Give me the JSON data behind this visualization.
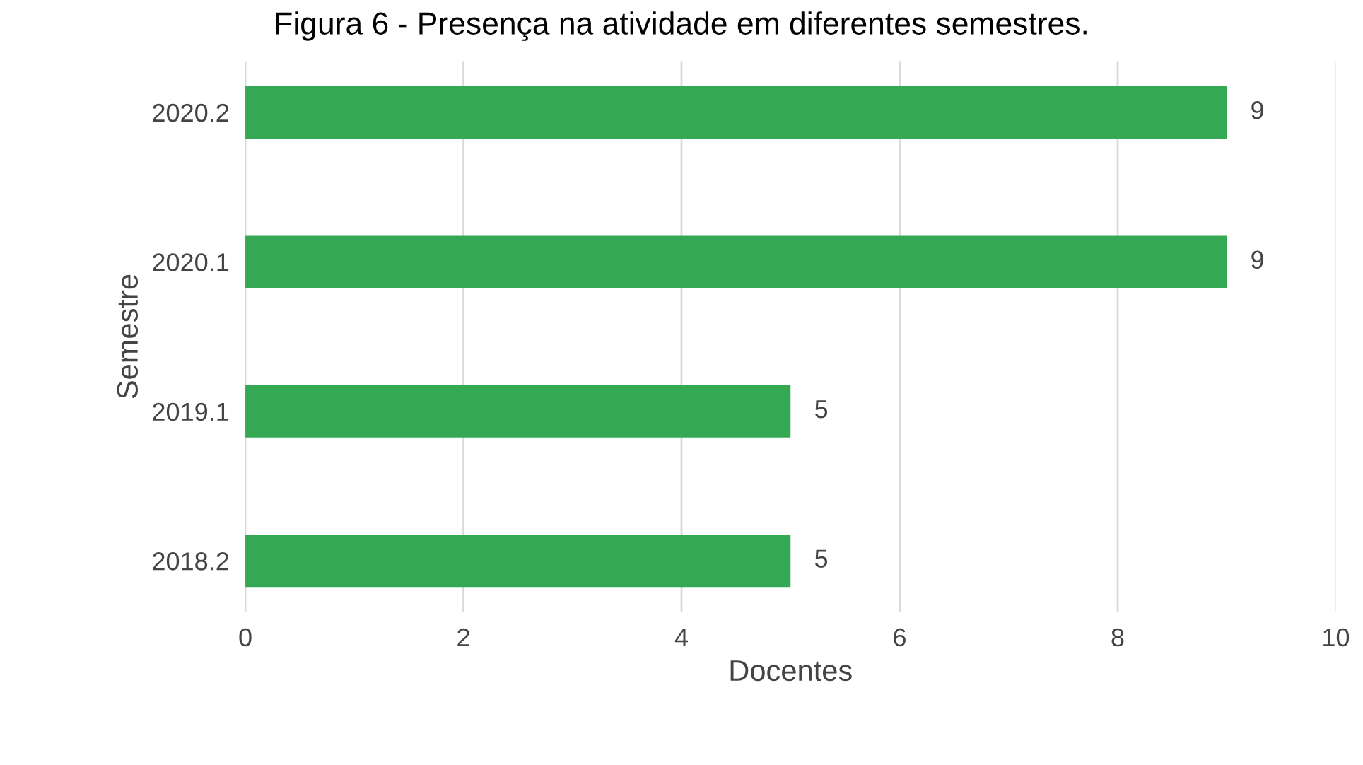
{
  "chart_data": {
    "type": "bar",
    "orientation": "horizontal",
    "title": "Figura 6 - Presença na atividade em diferentes semestres.",
    "xlabel": "Docentes",
    "ylabel": "Semestre",
    "categories": [
      "2020.2",
      "2020.1",
      "2019.1",
      "2018.2"
    ],
    "values": [
      9,
      9,
      5,
      5
    ],
    "color": "#34a853",
    "xlim": [
      0,
      10
    ],
    "xticks": [
      0,
      2,
      4,
      6,
      8,
      10
    ],
    "grid": "x",
    "data_labels": true
  }
}
